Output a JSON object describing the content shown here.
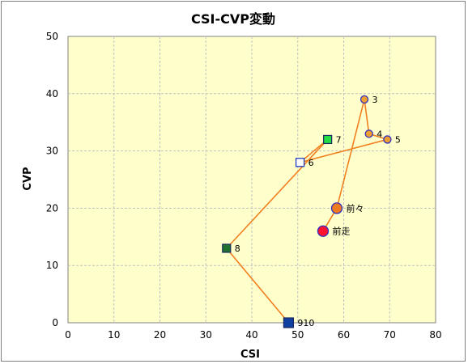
{
  "chart_data": {
    "type": "scatter",
    "title": "CSI-CVP変動",
    "xlabel": "CSI",
    "ylabel": "CVP",
    "xlim": [
      0,
      80
    ],
    "ylim": [
      0,
      50
    ],
    "x_ticks": [
      0,
      10,
      20,
      30,
      40,
      50,
      60,
      70,
      80
    ],
    "y_ticks": [
      0,
      10,
      20,
      30,
      40,
      50
    ],
    "grid": true,
    "colors": {
      "plot_background": "#ffffcc",
      "grid": "#c0c0c0",
      "line": "#f08020",
      "circle_fill": "#f0a030",
      "circle_stroke": "#3030c0",
      "green_fill": "#22dd44",
      "dark_green_fill": "#207030",
      "navy_fill": "#1040a0",
      "orange_fill": "#f07a20",
      "red_fill": "#ff1030",
      "hollow_fill": "#ffffff"
    },
    "points": [
      {
        "label": "910",
        "x": 48,
        "y": 0,
        "marker": "square",
        "fill": "navy_fill"
      },
      {
        "label": "8",
        "x": 34.5,
        "y": 13,
        "marker": "square",
        "fill": "dark_green_fill"
      },
      {
        "label": "7",
        "x": 56.5,
        "y": 32,
        "marker": "square",
        "fill": "green_fill"
      },
      {
        "label": "6",
        "x": 50.5,
        "y": 28,
        "marker": "square",
        "fill": "hollow_fill"
      },
      {
        "label": "5",
        "x": 69.5,
        "y": 32,
        "marker": "circle",
        "fill": "circle_fill"
      },
      {
        "label": "4",
        "x": 65.5,
        "y": 33,
        "marker": "circle",
        "fill": "circle_fill"
      },
      {
        "label": "3",
        "x": 64.5,
        "y": 39,
        "marker": "circle",
        "fill": "circle_fill"
      },
      {
        "label": "前々",
        "x": 58.5,
        "y": 20,
        "marker": "circle-large",
        "fill": "orange_fill"
      },
      {
        "label": "前走",
        "x": 55.5,
        "y": 16,
        "marker": "circle-large",
        "fill": "red_fill"
      }
    ],
    "path_order": [
      "910",
      "8",
      "7",
      "6",
      "5",
      "4",
      "3",
      "前々",
      "前走"
    ]
  }
}
